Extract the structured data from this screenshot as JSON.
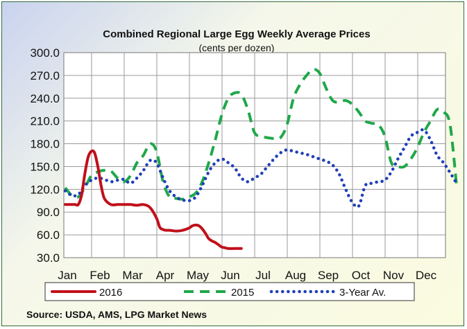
{
  "chart_data": {
    "type": "line",
    "title": "Combined Regional Large Egg Weekly Average Prices",
    "subtitle": "(cents per dozen)",
    "source": "Source: USDA, AMS, LPG  Market News",
    "ylim": [
      30,
      300
    ],
    "yticks": [
      "300.0",
      "270.0",
      "240.0",
      "210.0",
      "180.0",
      "150.0",
      "120.0",
      "90.0",
      "60.0",
      "30.0"
    ],
    "categories": [
      "Jan",
      "Feb",
      "Mar",
      "Apr",
      "May",
      "Jun",
      "Jul",
      "Aug",
      "Sep",
      "Oct",
      "Nov",
      "Dec"
    ],
    "grid": true,
    "legend_position": "bottom",
    "series": [
      {
        "name": "2016",
        "color": "#c0101a",
        "style": "solid",
        "x": [
          0,
          0.1,
          0.2,
          0.3,
          0.4,
          0.5,
          0.6,
          0.7,
          0.8,
          0.9,
          1.0,
          1.1,
          1.2,
          1.4,
          1.6,
          1.8,
          2.0,
          2.2,
          2.4,
          2.6,
          2.8,
          2.9,
          3.0,
          3.1,
          3.2,
          3.4,
          3.6,
          3.8,
          3.9,
          4.0,
          4.1,
          4.2,
          4.3,
          4.4,
          4.5,
          4.6,
          4.7,
          4.8,
          4.9,
          5.0,
          5.2,
          5.4
        ],
        "values": [
          100,
          100,
          100,
          100,
          100,
          112,
          140,
          162,
          170,
          168,
          150,
          125,
          108,
          100,
          100,
          100,
          100,
          99,
          100,
          96,
          82,
          70,
          67,
          66,
          66,
          65,
          66,
          69,
          72,
          73,
          72,
          68,
          62,
          55,
          52,
          50,
          47,
          44,
          43,
          42,
          42,
          42
        ]
      },
      {
        "name": "2015",
        "color": "#1fa84a",
        "style": "dashed",
        "x": [
          0,
          0.2,
          0.4,
          0.6,
          0.8,
          1.0,
          1.2,
          1.4,
          1.6,
          1.8,
          2.0,
          2.2,
          2.4,
          2.6,
          2.8,
          3.0,
          3.2,
          3.4,
          3.6,
          3.8,
          4.0,
          4.2,
          4.4,
          4.6,
          4.8,
          5.0,
          5.2,
          5.4,
          5.6,
          5.8,
          6.0,
          6.2,
          6.4,
          6.6,
          6.8,
          7.0,
          7.2,
          7.4,
          7.6,
          7.8,
          8.0,
          8.2,
          8.4,
          8.6,
          8.8,
          9.0,
          9.2,
          9.4,
          9.6,
          9.8,
          10.0,
          10.2,
          10.4,
          10.6,
          10.8,
          11.0,
          11.2,
          11.4,
          11.6,
          11.8,
          12.0
        ],
        "values": [
          122,
          112,
          110,
          122,
          138,
          143,
          145,
          144,
          135,
          130,
          138,
          155,
          165,
          180,
          170,
          130,
          110,
          108,
          107,
          110,
          115,
          130,
          155,
          185,
          218,
          240,
          247,
          245,
          225,
          195,
          190,
          188,
          187,
          188,
          205,
          240,
          258,
          270,
          278,
          273,
          253,
          237,
          235,
          237,
          232,
          222,
          210,
          207,
          205,
          190,
          155,
          150,
          150,
          160,
          175,
          195,
          210,
          225,
          222,
          205,
          125
        ]
      },
      {
        "name": "3-Year Av.",
        "color": "#1f3fb8",
        "style": "dotted",
        "x": [
          0,
          0.2,
          0.4,
          0.6,
          0.8,
          1.0,
          1.2,
          1.4,
          1.6,
          1.8,
          2.0,
          2.2,
          2.4,
          2.6,
          2.8,
          3.0,
          3.2,
          3.4,
          3.6,
          3.8,
          4.0,
          4.2,
          4.4,
          4.6,
          4.8,
          5.0,
          5.2,
          5.4,
          5.6,
          5.8,
          6.0,
          6.2,
          6.4,
          6.6,
          6.8,
          7.0,
          7.2,
          7.4,
          7.6,
          7.8,
          8.0,
          8.2,
          8.4,
          8.6,
          8.8,
          9.0,
          9.2,
          9.4,
          9.6,
          9.8,
          10.0,
          10.2,
          10.4,
          10.6,
          10.8,
          11.0,
          11.2,
          11.4,
          11.6,
          11.8,
          12.0
        ],
        "values": [
          118,
          112,
          113,
          125,
          132,
          135,
          133,
          130,
          132,
          133,
          128,
          135,
          145,
          158,
          155,
          135,
          118,
          110,
          106,
          105,
          110,
          125,
          143,
          155,
          160,
          155,
          148,
          135,
          130,
          135,
          140,
          150,
          160,
          168,
          172,
          170,
          168,
          166,
          163,
          160,
          157,
          152,
          140,
          120,
          103,
          98,
          125,
          128,
          130,
          132,
          143,
          160,
          175,
          190,
          195,
          198,
          185,
          165,
          155,
          142,
          128
        ]
      }
    ]
  }
}
